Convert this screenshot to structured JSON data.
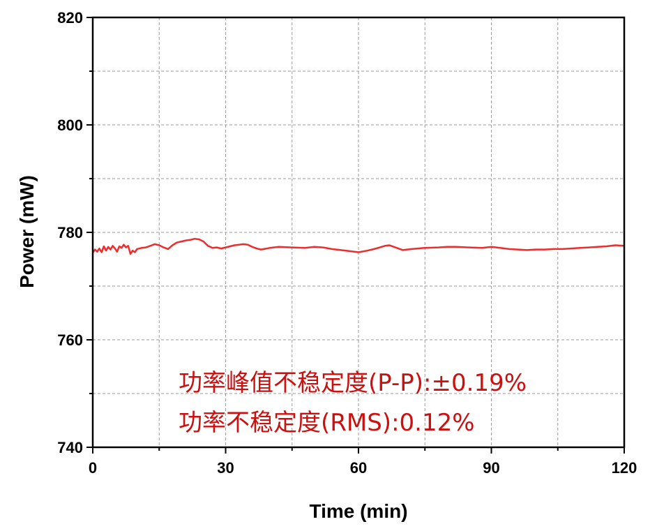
{
  "chart_data": {
    "type": "line",
    "xlabel": "Time (min)",
    "ylabel": "Power (mW)",
    "xlim": [
      0,
      120
    ],
    "ylim": [
      740,
      820
    ],
    "xticks": [
      0,
      30,
      60,
      90,
      120
    ],
    "yticks": [
      740,
      760,
      780,
      800,
      820
    ],
    "grid": true,
    "line_color": "#ee2c2c",
    "annotation_color": "#cc1010",
    "annotations": [
      "功率峰值不稳定度(P-P):±0.19%",
      "功率不稳定度(RMS):0.12%"
    ],
    "series": [
      {
        "x": [
          0,
          0.5,
          1,
          1.5,
          2,
          2.5,
          3,
          3.5,
          4,
          4.5,
          5,
          5.5,
          6,
          6.5,
          7,
          7.5,
          8,
          8.5,
          9,
          9.5,
          10,
          11,
          12,
          13,
          14,
          15,
          16,
          17,
          18,
          19,
          20,
          21,
          22,
          23,
          24,
          25,
          26,
          27,
          28,
          29,
          30,
          31,
          32,
          33,
          34,
          35,
          36,
          37,
          38,
          40,
          42,
          45,
          48,
          50,
          52,
          54,
          56,
          58,
          60,
          62,
          64,
          66,
          67,
          68,
          69,
          70,
          72,
          75,
          78,
          80,
          82,
          85,
          88,
          90,
          92,
          94,
          96,
          98,
          100,
          102,
          104,
          106,
          108,
          110,
          112,
          114,
          116,
          118,
          120
        ],
        "y": [
          776.2,
          776.8,
          776.4,
          777.0,
          776.3,
          777.4,
          776.6,
          777.3,
          776.8,
          777.5,
          777.0,
          776.4,
          777.4,
          777.1,
          777.7,
          777.2,
          777.5,
          776.0,
          776.6,
          776.3,
          776.9,
          777.1,
          777.2,
          777.5,
          777.8,
          777.6,
          777.2,
          776.9,
          777.6,
          778.1,
          778.3,
          778.5,
          778.6,
          778.8,
          778.7,
          778.3,
          777.5,
          777.1,
          777.2,
          777.0,
          777.2,
          777.4,
          777.6,
          777.7,
          777.8,
          777.7,
          777.3,
          777.0,
          776.8,
          777.1,
          777.3,
          777.2,
          777.1,
          777.3,
          777.2,
          776.9,
          776.7,
          776.5,
          776.3,
          776.6,
          777.0,
          777.5,
          777.6,
          777.3,
          777.0,
          776.7,
          776.9,
          777.1,
          777.2,
          777.3,
          777.3,
          777.2,
          777.1,
          777.3,
          777.1,
          776.9,
          776.8,
          776.7,
          776.8,
          776.8,
          776.9,
          776.9,
          777.0,
          777.1,
          777.2,
          777.3,
          777.4,
          777.6,
          777.5
        ]
      }
    ]
  }
}
